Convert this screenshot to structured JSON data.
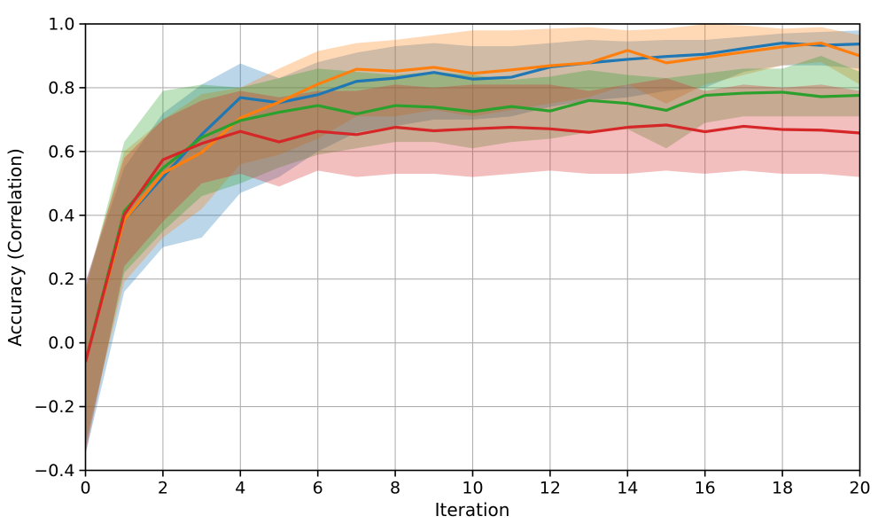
{
  "figure": {
    "background": "#ffffff"
  },
  "chart_data": {
    "type": "line",
    "title": "",
    "xlabel": "Iteration",
    "ylabel": "Accuracy (Correlation)",
    "xlim": [
      0,
      20
    ],
    "ylim": [
      -0.4,
      1.0
    ],
    "grid": true,
    "grid_color": "#b0b0b0",
    "spine_color": "#000000",
    "legend": "none",
    "x_ticks": [
      0,
      2,
      4,
      6,
      8,
      10,
      12,
      14,
      16,
      18,
      20
    ],
    "x_tick_labels": [
      "0",
      "2",
      "4",
      "6",
      "8",
      "10",
      "12",
      "14",
      "16",
      "18",
      "20"
    ],
    "y_ticks": [
      -0.4,
      -0.2,
      0.0,
      0.2,
      0.4,
      0.6,
      0.8,
      1.0
    ],
    "y_tick_labels": [
      "−0.4",
      "−0.2",
      "0.0",
      "0.2",
      "0.4",
      "0.6",
      "0.8",
      "1.0"
    ],
    "x": [
      0,
      1,
      2,
      3,
      4,
      5,
      6,
      7,
      8,
      9,
      10,
      11,
      12,
      13,
      14,
      15,
      16,
      17,
      18,
      19,
      20
    ],
    "band_alpha": 0.3,
    "line_width": 3.2,
    "series": [
      {
        "name": "blue",
        "color": "#1f77b4",
        "values": [
          -0.055,
          0.385,
          0.52,
          0.653,
          0.769,
          0.753,
          0.778,
          0.82,
          0.83,
          0.848,
          0.827,
          0.833,
          0.865,
          0.878,
          0.889,
          0.898,
          0.905,
          0.923,
          0.94,
          0.933,
          0.937
        ],
        "band_lower": [
          -0.35,
          0.16,
          0.3,
          0.33,
          0.47,
          0.52,
          0.6,
          0.66,
          0.68,
          0.7,
          0.7,
          0.71,
          0.74,
          0.76,
          0.77,
          0.79,
          0.8,
          0.85,
          0.87,
          0.87,
          0.86
        ],
        "band_upper": [
          0.19,
          0.55,
          0.72,
          0.81,
          0.876,
          0.83,
          0.88,
          0.91,
          0.93,
          0.94,
          0.93,
          0.93,
          0.94,
          0.95,
          0.945,
          0.95,
          0.95,
          0.96,
          0.97,
          0.975,
          0.98
        ]
      },
      {
        "name": "orange",
        "color": "#ff7f0e",
        "values": [
          -0.055,
          0.385,
          0.532,
          0.597,
          0.705,
          0.755,
          0.811,
          0.858,
          0.852,
          0.864,
          0.845,
          0.856,
          0.869,
          0.878,
          0.917,
          0.878,
          0.895,
          0.912,
          0.928,
          0.94,
          0.9
        ],
        "band_lower": [
          -0.31,
          0.19,
          0.33,
          0.42,
          0.56,
          0.59,
          0.64,
          0.71,
          0.71,
          0.73,
          0.71,
          0.73,
          0.75,
          0.77,
          0.81,
          0.75,
          0.81,
          0.84,
          0.87,
          0.88,
          0.81
        ],
        "band_upper": [
          0.17,
          0.6,
          0.7,
          0.78,
          0.8,
          0.86,
          0.915,
          0.94,
          0.95,
          0.965,
          0.98,
          0.98,
          0.985,
          0.99,
          0.98,
          0.985,
          1.0,
          0.995,
          0.985,
          0.99,
          0.965
        ]
      },
      {
        "name": "green",
        "color": "#2ca02c",
        "values": [
          -0.058,
          0.413,
          0.548,
          0.644,
          0.697,
          0.723,
          0.744,
          0.718,
          0.744,
          0.739,
          0.725,
          0.741,
          0.727,
          0.76,
          0.751,
          0.729,
          0.776,
          0.783,
          0.786,
          0.772,
          0.776
        ],
        "band_lower": [
          -0.33,
          0.22,
          0.35,
          0.46,
          0.5,
          0.55,
          0.59,
          0.61,
          0.63,
          0.63,
          0.61,
          0.63,
          0.64,
          0.66,
          0.67,
          0.61,
          0.69,
          0.71,
          0.71,
          0.71,
          0.71
        ],
        "band_upper": [
          0.17,
          0.63,
          0.79,
          0.81,
          0.8,
          0.83,
          0.86,
          0.85,
          0.84,
          0.85,
          0.84,
          0.825,
          0.835,
          0.855,
          0.84,
          0.83,
          0.845,
          0.86,
          0.86,
          0.9,
          0.85
        ]
      },
      {
        "name": "red",
        "color": "#d62728",
        "values": [
          -0.06,
          0.402,
          0.574,
          0.625,
          0.663,
          0.63,
          0.663,
          0.653,
          0.676,
          0.665,
          0.671,
          0.676,
          0.671,
          0.66,
          0.676,
          0.683,
          0.662,
          0.679,
          0.669,
          0.667,
          0.658
        ],
        "band_lower": [
          -0.35,
          0.24,
          0.38,
          0.5,
          0.53,
          0.49,
          0.54,
          0.52,
          0.53,
          0.53,
          0.52,
          0.53,
          0.54,
          0.53,
          0.53,
          0.54,
          0.53,
          0.54,
          0.53,
          0.53,
          0.52
        ],
        "band_upper": [
          0.19,
          0.58,
          0.7,
          0.76,
          0.79,
          0.77,
          0.79,
          0.79,
          0.81,
          0.8,
          0.81,
          0.81,
          0.81,
          0.79,
          0.81,
          0.83,
          0.79,
          0.81,
          0.8,
          0.81,
          0.79
        ]
      }
    ]
  }
}
